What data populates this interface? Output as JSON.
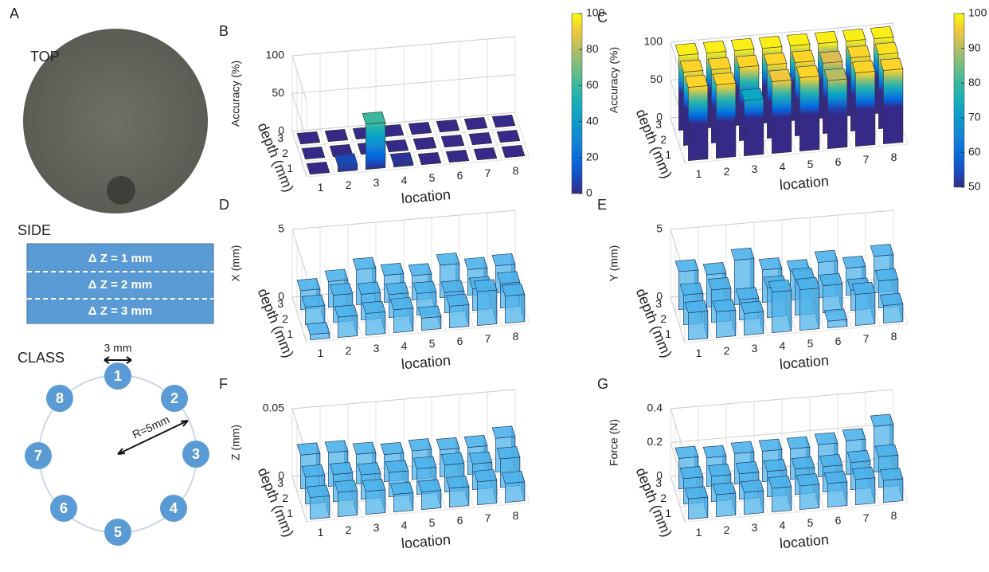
{
  "panel_a": {
    "label": "A",
    "top": "TOP",
    "side": "SIDE",
    "layers": [
      "Δ Z = 1 mm",
      "Δ Z = 2 mm",
      "Δ Z = 3 mm"
    ],
    "class": "CLASS",
    "spacing": "3 mm",
    "radius": "R=5mm",
    "locations": [
      "1",
      "2",
      "3",
      "4",
      "5",
      "6",
      "7",
      "8"
    ]
  },
  "chart_data": [
    {
      "type": "bar3d",
      "panel": "B",
      "zlabel": "Accuracy (%)",
      "xlabel": "location",
      "ylabel": "depth (mm)",
      "categories": [
        "1",
        "2",
        "3",
        "4",
        "5",
        "6",
        "7",
        "8"
      ],
      "depths": [
        "1",
        "2",
        "3"
      ],
      "values": [
        [
          0,
          8,
          60,
          3,
          0,
          0,
          0,
          0
        ],
        [
          0,
          0,
          0,
          0,
          0,
          0,
          0,
          0
        ],
        [
          0,
          0,
          0,
          0,
          0,
          0,
          0,
          0
        ]
      ],
      "zlim": [
        0,
        100
      ],
      "zticks": [
        0,
        50,
        100
      ],
      "colormap": "parula",
      "clim": [
        0,
        100
      ],
      "cticks": [
        0,
        20,
        40,
        60,
        80,
        100
      ],
      "grid": true
    },
    {
      "type": "bar3d",
      "panel": "C",
      "zlabel": "Accuracy (%)",
      "xlabel": "location",
      "ylabel": "depth (mm)",
      "categories": [
        "1",
        "2",
        "3",
        "4",
        "5",
        "6",
        "7",
        "8"
      ],
      "depths": [
        "1",
        "2",
        "3"
      ],
      "values": [
        [
          97,
          97,
          73,
          95,
          97,
          90,
          97,
          97
        ],
        [
          97,
          97,
          97,
          97,
          97,
          93,
          97,
          98
        ],
        [
          99,
          99,
          99,
          99,
          99,
          99,
          99,
          99
        ]
      ],
      "zlim": [
        0,
        100
      ],
      "zticks": [
        0,
        50,
        100
      ],
      "colormap": "parula",
      "clim": [
        50,
        100
      ],
      "cticks": [
        50,
        60,
        70,
        80,
        90,
        100
      ],
      "grid": true
    },
    {
      "type": "bar3d",
      "panel": "D",
      "zlabel": "X (mm)",
      "xlabel": "location",
      "ylabel": "depth (mm)",
      "categories": [
        "1",
        "2",
        "3",
        "4",
        "5",
        "6",
        "7",
        "8"
      ],
      "depths": [
        "1",
        "2",
        "3"
      ],
      "values": [
        [
          0.4,
          1.5,
          1.6,
          1.7,
          0.9,
          1.6,
          2.5,
          2.0
        ],
        [
          1.3,
          2.0,
          1.9,
          1.7,
          1.6,
          1.5,
          1.6,
          1.8
        ],
        [
          1.4,
          1.9,
          2.6,
          2.0,
          1.8,
          2.4,
          1.9,
          2.0
        ]
      ],
      "zlim": [
        0,
        5
      ],
      "zticks": [
        0,
        5
      ],
      "color": "#4db3ea",
      "grid": true
    },
    {
      "type": "bar3d",
      "panel": "E",
      "zlabel": "Y (mm)",
      "xlabel": "location",
      "ylabel": "depth (mm)",
      "categories": [
        "1",
        "2",
        "3",
        "4",
        "5",
        "6",
        "7",
        "8"
      ],
      "depths": [
        "1",
        "2",
        "3"
      ],
      "values": [
        [
          2.0,
          1.9,
          1.6,
          3.0,
          3.0,
          0.5,
          2.3,
          1.3
        ],
        [
          2.2,
          2.4,
          1.5,
          2.2,
          2.6,
          2.0,
          1.5,
          2.0
        ],
        [
          2.8,
          2.4,
          3.3,
          2.4,
          2.1,
          2.6,
          2.0,
          2.7
        ]
      ],
      "zlim": [
        0,
        5
      ],
      "zticks": [
        0,
        5
      ],
      "color": "#4db3ea",
      "grid": true
    },
    {
      "type": "bar3d",
      "panel": "F",
      "zlabel": "Z (mm)",
      "xlabel": "location",
      "ylabel": "depth (mm)",
      "categories": [
        "1",
        "2",
        "3",
        "4",
        "5",
        "6",
        "7",
        "8"
      ],
      "depths": [
        "1",
        "2",
        "3"
      ],
      "values": [
        [
          0.016,
          0.018,
          0.017,
          0.013,
          0.013,
          0.014,
          0.017,
          0.014
        ],
        [
          0.02,
          0.02,
          0.018,
          0.018,
          0.019,
          0.02,
          0.019,
          0.021
        ],
        [
          0.025,
          0.025,
          0.022,
          0.02,
          0.021,
          0.02,
          0.02,
          0.025
        ]
      ],
      "zlim": [
        0,
        0.05
      ],
      "zticks": [
        0,
        0.05
      ],
      "color": "#4db3ea",
      "grid": true
    },
    {
      "type": "bar3d",
      "panel": "G",
      "zlabel": "Force (N)",
      "xlabel": "location",
      "ylabel": "depth (mm)",
      "categories": [
        "1",
        "2",
        "3",
        "4",
        "5",
        "6",
        "7",
        "8"
      ],
      "depths": [
        "1",
        "2",
        "3"
      ],
      "values": [
        [
          0.12,
          0.13,
          0.13,
          0.14,
          0.14,
          0.14,
          0.15,
          0.13
        ],
        [
          0.15,
          0.15,
          0.15,
          0.15,
          0.15,
          0.15,
          0.16,
          0.18
        ],
        [
          0.18,
          0.17,
          0.18,
          0.18,
          0.18,
          0.19,
          0.2,
          0.27
        ]
      ],
      "zlim": [
        0,
        0.4
      ],
      "zticks": [
        0,
        0.2,
        0.4
      ],
      "color": "#4db3ea",
      "grid": true
    }
  ]
}
